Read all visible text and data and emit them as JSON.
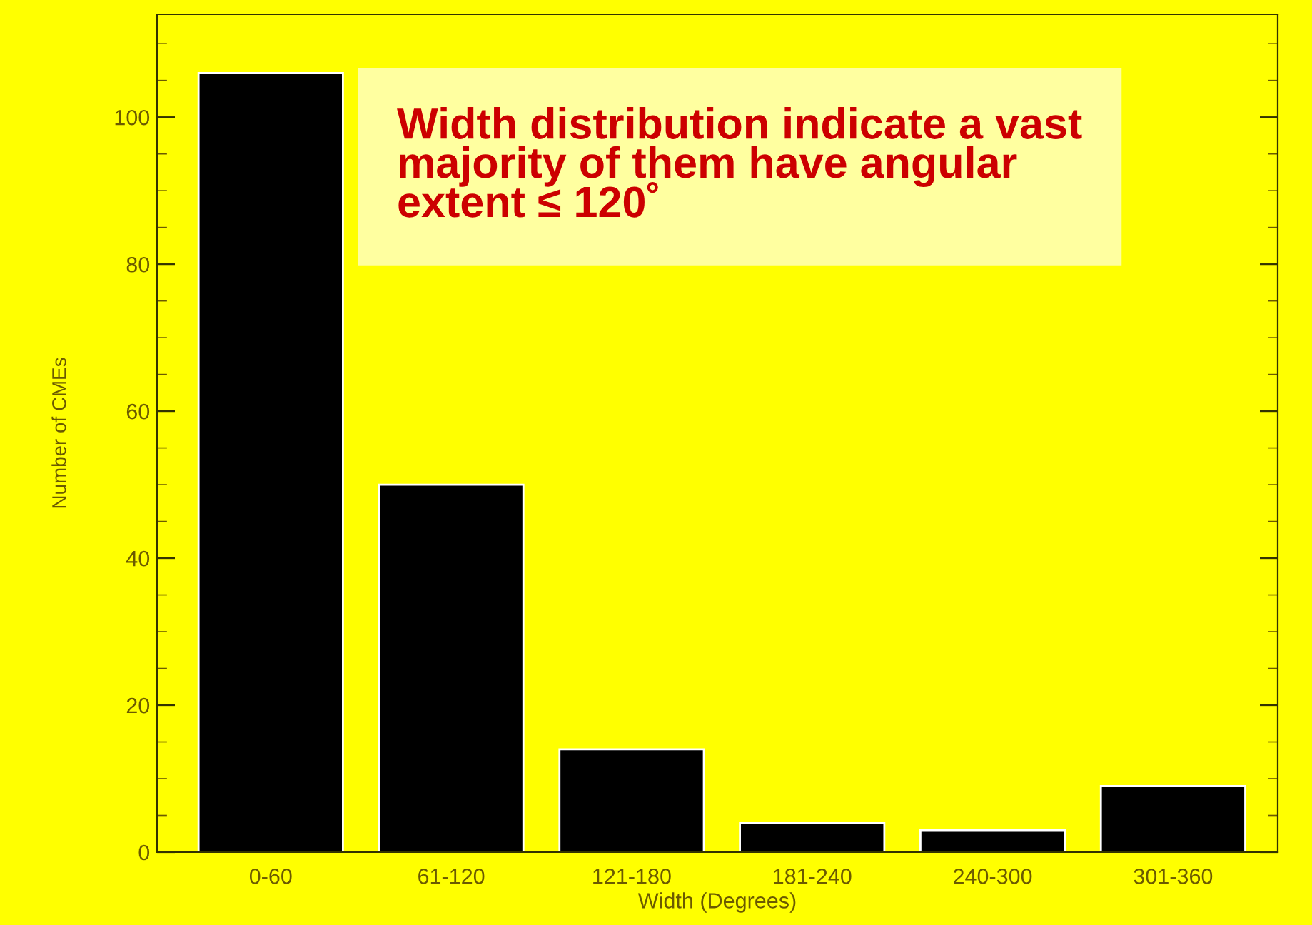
{
  "chart_data": {
    "type": "bar",
    "xlabel": "Width (Degrees)",
    "ylabel": "Number of CMEs",
    "categories": [
      "0-60",
      "61-120",
      "121-180",
      "181-240",
      "240-300",
      "301-360"
    ],
    "values": [
      106,
      50,
      14,
      4,
      3,
      9
    ],
    "color": "#000000",
    "ylim": [
      0,
      114
    ],
    "yticks": [
      0,
      {
        "value": 5,
        "label": null
      },
      {
        "value": 10,
        "label": null
      },
      {
        "value": 15,
        "label": null
      },
      20,
      {
        "value": 25,
        "label": null
      },
      {
        "value": 30,
        "label": null
      },
      {
        "value": 35,
        "label": null
      },
      40,
      {
        "value": 45,
        "label": null
      },
      {
        "value": 50,
        "label": null
      },
      {
        "value": 55,
        "label": null
      },
      60,
      {
        "value": 65,
        "label": null
      },
      {
        "value": 70,
        "label": null
      },
      {
        "value": 75,
        "label": null
      },
      80,
      {
        "value": 85,
        "label": null
      },
      {
        "value": 90,
        "label": null
      },
      {
        "value": 95,
        "label": null
      },
      100,
      {
        "value": 105,
        "label": null
      },
      {
        "value": 110,
        "label": null
      }
    ],
    "annotations": [
      "Width distribution indicate a vast\nmajority of them have angular\nextent ≤ 120˚"
    ],
    "grid": false,
    "legend": false
  }
}
